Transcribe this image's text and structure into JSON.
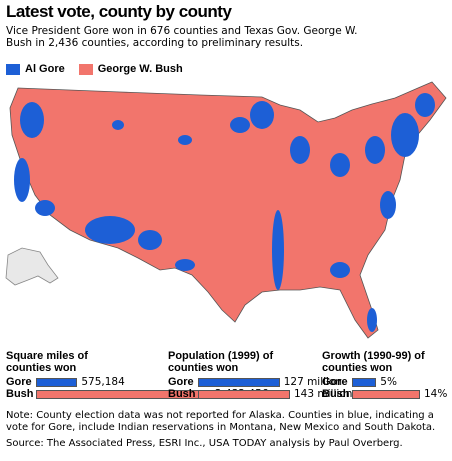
{
  "header": {
    "title": "Latest vote, county by county",
    "subtitle": "Vice President Gore won in 676 counties and Texas Gov. George W. Bush in 2,436 counties, according to preliminary results."
  },
  "legend": [
    {
      "name": "Al Gore",
      "color": "#1d5fd6"
    },
    {
      "name": "George W. Bush",
      "color": "#f2756c"
    }
  ],
  "chart_data": [
    {
      "type": "bar",
      "title": "Square miles of counties won",
      "categories": [
        "Gore",
        "Bush"
      ],
      "series": [
        {
          "name": "Square miles",
          "values": [
            575184,
            2432456
          ],
          "value_labels": [
            "575,184",
            "2,432,456"
          ],
          "colors": [
            "#1d5fd6",
            "#f2756c"
          ]
        }
      ]
    },
    {
      "type": "bar",
      "title": "Population (1999) of counties won",
      "categories": [
        "Gore",
        "Bush"
      ],
      "series": [
        {
          "name": "Population",
          "values": [
            127,
            143
          ],
          "value_labels": [
            "127 million",
            "143 million"
          ],
          "colors": [
            "#1d5fd6",
            "#f2756c"
          ]
        }
      ]
    },
    {
      "type": "bar",
      "title": "Growth (1990-99) of counties won",
      "categories": [
        "Gore",
        "Bush"
      ],
      "series": [
        {
          "name": "Growth",
          "values": [
            5,
            14
          ],
          "value_labels": [
            "5%",
            "14%"
          ],
          "colors": [
            "#1d5fd6",
            "#f2756c"
          ]
        }
      ]
    }
  ],
  "note": "Note: County election data was not reported for Alaska. Counties in blue, indicating a vote for Gore, include Indian reservations in Montana, New Mexico and South Dakota.",
  "source": "Source: The Associated Press, ESRI Inc., USA TODAY analysis by Paul Overberg."
}
